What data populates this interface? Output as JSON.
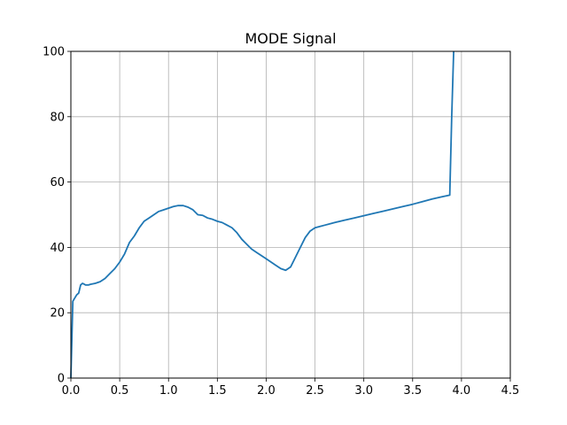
{
  "chart_data": {
    "type": "line",
    "title": "MODE Signal",
    "xlabel": "",
    "ylabel": "",
    "xlim": [
      0.0,
      4.5
    ],
    "ylim": [
      0,
      100
    ],
    "xticks": [
      0.0,
      0.5,
      1.0,
      1.5,
      2.0,
      2.5,
      3.0,
      3.5,
      4.0,
      4.5
    ],
    "xtick_labels": [
      "0.0",
      "0.5",
      "1.0",
      "1.5",
      "2.0",
      "2.5",
      "3.0",
      "3.5",
      "4.0",
      "4.5"
    ],
    "yticks": [
      0,
      20,
      40,
      60,
      80,
      100
    ],
    "ytick_labels": [
      "0",
      "20",
      "40",
      "60",
      "80",
      "100"
    ],
    "grid": true,
    "series": [
      {
        "color": "#1f77b4",
        "x": [
          0.0,
          0.02,
          0.04,
          0.06,
          0.08,
          0.1,
          0.12,
          0.15,
          0.18,
          0.2,
          0.25,
          0.3,
          0.35,
          0.4,
          0.45,
          0.5,
          0.55,
          0.6,
          0.65,
          0.7,
          0.75,
          0.8,
          0.85,
          0.9,
          0.95,
          1.0,
          1.05,
          1.1,
          1.15,
          1.2,
          1.25,
          1.3,
          1.35,
          1.4,
          1.45,
          1.5,
          1.55,
          1.6,
          1.65,
          1.7,
          1.75,
          1.8,
          1.85,
          1.9,
          1.95,
          2.0,
          2.05,
          2.1,
          2.15,
          2.2,
          2.25,
          2.3,
          2.35,
          2.4,
          2.45,
          2.5,
          2.6,
          2.7,
          2.8,
          2.9,
          3.0,
          3.1,
          3.2,
          3.3,
          3.4,
          3.5,
          3.6,
          3.7,
          3.8,
          3.88,
          3.9,
          3.92
        ],
        "y": [
          0,
          23.5,
          24.5,
          25.5,
          26.0,
          28.5,
          29.0,
          28.5,
          28.5,
          28.7,
          29.0,
          29.5,
          30.5,
          32.0,
          33.5,
          35.5,
          38.0,
          41.5,
          43.5,
          46.0,
          48.0,
          49.0,
          50.0,
          51.0,
          51.5,
          52.0,
          52.5,
          52.8,
          52.8,
          52.3,
          51.5,
          50.0,
          49.8,
          49.0,
          48.6,
          48.0,
          47.6,
          46.8,
          46.0,
          44.5,
          42.5,
          41.0,
          39.5,
          38.5,
          37.5,
          36.5,
          35.5,
          34.5,
          33.5,
          33.0,
          34.0,
          37.0,
          40.0,
          43.0,
          45.0,
          46.0,
          46.8,
          47.6,
          48.3,
          49.0,
          49.7,
          50.4,
          51.1,
          51.8,
          52.5,
          53.2,
          54.0,
          54.8,
          55.5,
          56.0,
          80.0,
          100.0
        ]
      }
    ]
  }
}
